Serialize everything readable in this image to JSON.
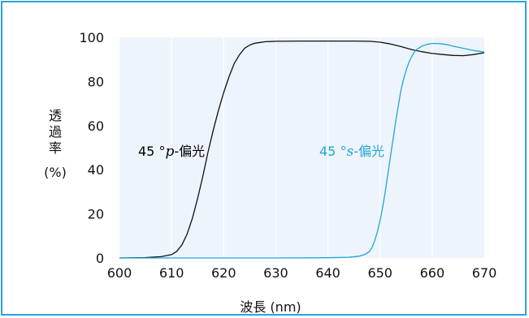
{
  "chart_data": {
    "type": "line",
    "xlabel": "波長 (nm)",
    "ylabel": "透過率",
    "ylabel_unit": "(%)",
    "xlim": [
      600,
      670
    ],
    "ylim": [
      0,
      100
    ],
    "x_ticks": [
      "600",
      "610",
      "620",
      "630",
      "640",
      "650",
      "660",
      "670"
    ],
    "y_ticks": [
      "0",
      "20",
      "40",
      "60",
      "80",
      "100"
    ],
    "grid": "vertical",
    "colors": {
      "plot_bg": "#eef4fb",
      "grid": "#ffffff",
      "frame": "#2ba3d6",
      "p_series": "#111111",
      "s_series": "#1fa6d9"
    },
    "series": [
      {
        "key": "p",
        "color": "#111111",
        "label": {
          "prefix": "45 °",
          "italic": "p",
          "suffix": "-偏光"
        },
        "x": [
          600,
          605,
          608,
          610,
          611,
          612,
          613,
          614,
          615,
          616,
          617,
          618,
          619,
          620,
          621,
          622,
          623,
          624,
          625,
          626,
          627,
          628,
          629,
          630,
          635,
          640,
          645,
          648,
          650,
          652,
          654,
          656,
          658,
          660,
          662,
          664,
          666,
          668,
          670
        ],
        "y": [
          0,
          0.2,
          0.6,
          1.5,
          3,
          6,
          11,
          18,
          27,
          37,
          48,
          58,
          67,
          75,
          82,
          88,
          92,
          95,
          96.5,
          97.3,
          97.7,
          98,
          98.1,
          98.2,
          98.3,
          98.3,
          98.3,
          98.2,
          97.8,
          97,
          95.8,
          94.5,
          93.5,
          92.7,
          92.2,
          91.8,
          91.7,
          92.2,
          93
        ]
      },
      {
        "key": "s",
        "color": "#1fa6d9",
        "label": {
          "prefix": "45 °",
          "italic": "s",
          "suffix": "-偏光"
        },
        "x": [
          600,
          630,
          640,
          644,
          646,
          647,
          648,
          648.5,
          649,
          649.5,
          650,
          650.5,
          651,
          651.5,
          652,
          652.5,
          653,
          653.5,
          654,
          654.5,
          655,
          655.5,
          656,
          656.5,
          657,
          658,
          659,
          660,
          661,
          662,
          663,
          664,
          666,
          668,
          670
        ],
        "y": [
          0,
          0,
          0.1,
          0.3,
          0.8,
          1.5,
          3,
          5,
          8,
          12,
          17,
          23,
          30,
          38,
          46,
          54,
          62,
          69,
          76,
          81,
          85,
          88.5,
          91,
          93,
          94.5,
          96,
          96.8,
          97.2,
          97.2,
          97,
          96.6,
          96,
          95,
          94,
          93.3
        ]
      }
    ]
  }
}
